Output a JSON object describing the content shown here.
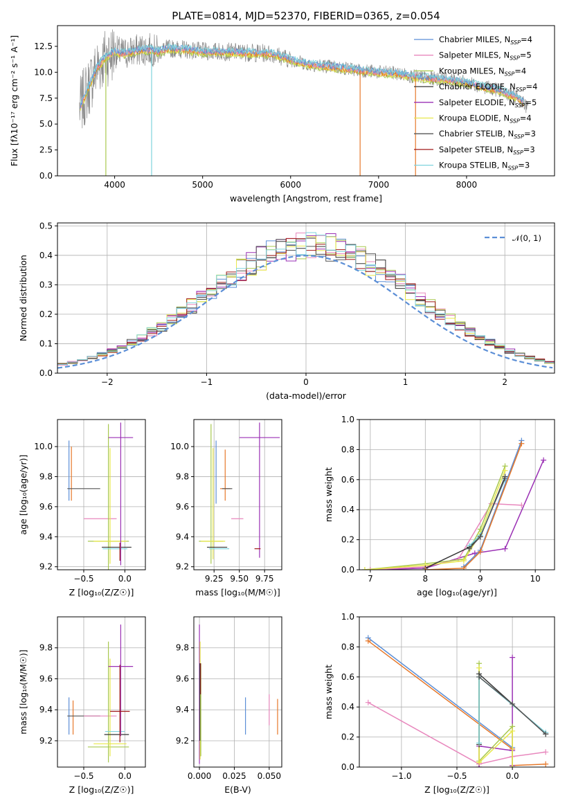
{
  "colors": {
    "Chabrier MILES": "#5b8ed6",
    "Salpeter MILES": "#e887bd",
    "Kroupa MILES": "#a8c84e",
    "Chabrier ELODIE": "#333333",
    "Salpeter ELODIE": "#9a2fb4",
    "Kroupa ELODIE": "#e8e84a",
    "Chabrier STELIB": "#555555",
    "Salpeter STELIB": "#a01818",
    "Kroupa STELIB": "#7ed3dc",
    "orange": "#e6782a",
    "grey": "#888888"
  },
  "chart_data": [
    {
      "id": "spectrum",
      "type": "line",
      "title": "PLATE=0814, MJD=52370, FIBERID=0365, z=0.054",
      "xlabel": "wavelength [Angstrom, rest frame]",
      "ylabel": "Flux [fλ10⁻¹⁷ erg cm⁻² s⁻¹ A⁻¹]",
      "xlim": [
        3350,
        9000
      ],
      "ylim": [
        0,
        14.5
      ],
      "xticks": [
        4000,
        5000,
        6000,
        7000,
        8000
      ],
      "xtick_labels": [
        "4000",
        "5000",
        "6000",
        "7000",
        "8000"
      ],
      "yticks": [
        0,
        2.5,
        5,
        7.5,
        10,
        12.5
      ],
      "ytick_labels": [
        "0.0",
        "2.5",
        "5.0",
        "7.5",
        "10.0",
        "12.5"
      ],
      "grid": false,
      "legend_position": "top-right",
      "legend": [
        {
          "pre": "Chabrier MILES, N",
          "sub": "SSP",
          "post": "=4",
          "color": "#5b8ed6"
        },
        {
          "pre": "Salpeter MILES, N",
          "sub": "SSP",
          "post": "=5",
          "color": "#e887bd"
        },
        {
          "pre": "Kroupa MILES, N",
          "sub": "SSP",
          "post": "=4",
          "color": "#a8c84e"
        },
        {
          "pre": "Chabrier ELODIE, N",
          "sub": "SSP",
          "post": "=4",
          "color": "#333333"
        },
        {
          "pre": "Salpeter ELODIE, N",
          "sub": "SSP",
          "post": "=5",
          "color": "#9a2fb4"
        },
        {
          "pre": "Kroupa ELODIE, N",
          "sub": "SSP",
          "post": "=4",
          "color": "#e8e84a"
        },
        {
          "pre": "Chabrier STELIB, N",
          "sub": "SSP",
          "post": "=3",
          "color": "#555555"
        },
        {
          "pre": "Salpeter STELIB, N",
          "sub": "SSP",
          "post": "=3",
          "color": "#a01818"
        },
        {
          "pre": "Kroupa STELIB, N",
          "sub": "SSP",
          "post": "=3",
          "color": "#7ed3dc"
        }
      ],
      "data_envelope": {
        "x": [
          3600,
          3700,
          3800,
          3900,
          4000,
          4100,
          4200,
          4300,
          4400,
          4500,
          4600,
          4800,
          5000,
          5200,
          5500,
          5800,
          6000,
          6200,
          6500,
          6800,
          7000,
          7200,
          7400,
          7600,
          7800,
          8000,
          8200,
          8400,
          8600,
          8700
        ],
        "y": [
          6.5,
          8.5,
          10.5,
          11.5,
          12.0,
          11.8,
          12.0,
          12.2,
          12.2,
          12.0,
          12.3,
          12.2,
          12.0,
          12.0,
          11.9,
          11.8,
          11.2,
          10.8,
          10.5,
          10.2,
          10.0,
          9.9,
          9.6,
          9.4,
          9.3,
          9.0,
          8.6,
          8.2,
          7.5,
          6.5
        ]
      }
    },
    {
      "id": "residuals",
      "type": "step",
      "xlabel": "(data-model)/error",
      "ylabel": "Normed distribution",
      "xlim": [
        -2.5,
        2.5
      ],
      "ylim": [
        0,
        0.51
      ],
      "xticks": [
        -2,
        -1,
        0,
        1,
        2
      ],
      "xtick_labels": [
        "−2",
        "−1",
        "0",
        "1",
        "2"
      ],
      "yticks": [
        0,
        0.1,
        0.2,
        0.3,
        0.4,
        0.5
      ],
      "ytick_labels": [
        "0.0",
        "0.1",
        "0.2",
        "0.3",
        "0.4",
        "0.5"
      ],
      "grid": true,
      "legend_position": "top-right",
      "legend_label": "𝒩(0, 1)",
      "gaussian": {
        "mean": 0,
        "sigma": 1,
        "color": "#5b8ed6"
      }
    },
    {
      "id": "age-z",
      "type": "errorbar",
      "xlabel": "Z [log₁₀(Z/Z☉)]",
      "ylabel": "age  [log₁₀(age/yr)]",
      "xlim": [
        -0.82,
        0.25
      ],
      "ylim": [
        9.18,
        10.18
      ],
      "xticks": [
        -0.5,
        0.0
      ],
      "xtick_labels": [
        "−0.5",
        "0.0"
      ],
      "yticks": [
        9.2,
        9.4,
        9.6,
        9.8,
        10.0
      ],
      "ytick_labels": [
        "9.2",
        "9.4",
        "9.6",
        "9.8",
        "10.0"
      ],
      "grid": true,
      "points": [
        {
          "x": -0.68,
          "y": 9.72,
          "xerr": 0.0,
          "yerr": [
            0.08,
            0.32
          ],
          "color": "#5b8ed6"
        },
        {
          "x": -0.65,
          "y": 9.72,
          "xerr": 0.0,
          "yerr": [
            0.08,
            0.28
          ],
          "color": "#e6782a"
        },
        {
          "x": -0.5,
          "y": 9.72,
          "xerr": 0.2,
          "yerr": [
            0.0,
            0.0
          ],
          "color": "#555555"
        },
        {
          "x": -0.3,
          "y": 9.52,
          "xerr": 0.2,
          "yerr": [
            0.0,
            0.0
          ],
          "color": "#e887bd"
        },
        {
          "x": -0.2,
          "y": 9.37,
          "xerr": 0.25,
          "yerr": [
            0.2,
            0.78
          ],
          "color": "#a8c84e"
        },
        {
          "x": -0.18,
          "y": 9.37,
          "xerr": 0.2,
          "yerr": [
            0.15,
            0.62
          ],
          "color": "#e8e84a"
        },
        {
          "x": -0.1,
          "y": 9.33,
          "xerr": 0.18,
          "yerr": [
            0.0,
            0.0
          ],
          "color": "#333333"
        },
        {
          "x": -0.12,
          "y": 9.32,
          "xerr": 0.15,
          "yerr": [
            0.0,
            0.0
          ],
          "color": "#7ed3dc"
        },
        {
          "x": -0.05,
          "y": 10.06,
          "xerr": 0.15,
          "yerr": [
            0.85,
            0.1
          ],
          "color": "#9a2fb4"
        },
        {
          "x": -0.06,
          "y": 9.3,
          "xerr": 0.0,
          "yerr": [
            0.06,
            0.06
          ],
          "color": "#a01818"
        }
      ]
    },
    {
      "id": "age-mass",
      "type": "errorbar",
      "xlabel": "mass [log₁₀(M/M☉)]",
      "ylabel": "",
      "xlim": [
        9.05,
        9.92
      ],
      "ylim": [
        9.18,
        10.18
      ],
      "xticks": [
        9.25,
        9.5,
        9.75
      ],
      "xtick_labels": [
        "9.25",
        "9.50",
        "9.75"
      ],
      "yticks": [
        9.2,
        9.4,
        9.6,
        9.8,
        10.0
      ],
      "ytick_labels": [
        "9.2",
        "9.4",
        "9.6",
        "9.8",
        "10.0"
      ],
      "grid": true,
      "points": [
        {
          "x": 9.22,
          "y": 9.37,
          "xerr": 0.12,
          "yerr": [
            0.15,
            0.78
          ],
          "color": "#a8c84e"
        },
        {
          "x": 9.24,
          "y": 9.37,
          "xerr": 0.12,
          "yerr": [
            0.12,
            0.62
          ],
          "color": "#e8e84a"
        },
        {
          "x": 9.28,
          "y": 9.33,
          "xerr": 0.1,
          "yerr": [
            0.0,
            0.0
          ],
          "color": "#333333"
        },
        {
          "x": 9.3,
          "y": 9.32,
          "xerr": 0.1,
          "yerr": [
            0.0,
            0.0
          ],
          "color": "#7ed3dc"
        },
        {
          "x": 9.27,
          "y": 9.72,
          "xerr": 0.0,
          "yerr": [
            0.1,
            0.32
          ],
          "color": "#5b8ed6"
        },
        {
          "x": 9.36,
          "y": 9.72,
          "xerr": 0.05,
          "yerr": [
            0.08,
            0.26
          ],
          "color": "#e6782a"
        },
        {
          "x": 9.38,
          "y": 9.72,
          "xerr": 0.05,
          "yerr": [
            0.0,
            0.0
          ],
          "color": "#555555"
        },
        {
          "x": 9.48,
          "y": 9.52,
          "xerr": 0.06,
          "yerr": [
            0.0,
            0.0
          ],
          "color": "#e887bd"
        },
        {
          "x": 9.7,
          "y": 10.06,
          "xerr": 0.2,
          "yerr": [
            0.8,
            0.1
          ],
          "color": "#9a2fb4"
        },
        {
          "x": 9.68,
          "y": 9.32,
          "xerr": 0.03,
          "yerr": [
            0.0,
            0.0
          ],
          "color": "#a01818"
        }
      ]
    },
    {
      "id": "weight-age",
      "type": "line",
      "xlabel": "age  [log₁₀(age/yr)]",
      "ylabel": "mass weight",
      "xlim": [
        6.8,
        10.35
      ],
      "ylim": [
        0,
        1.0
      ],
      "xticks": [
        7,
        8,
        9,
        10
      ],
      "xtick_labels": [
        "7",
        "8",
        "9",
        "10"
      ],
      "yticks": [
        0,
        0.2,
        0.4,
        0.6,
        0.8,
        1.0
      ],
      "ytick_labels": [
        "0.0",
        "0.2",
        "0.4",
        "0.6",
        "0.8",
        "1.0"
      ],
      "grid": true,
      "series": [
        {
          "color": "#9a2fb4",
          "x": [
            7.0,
            8.0,
            8.9,
            9.45,
            10.15
          ],
          "y": [
            0.0,
            0.01,
            0.11,
            0.14,
            0.73
          ]
        },
        {
          "color": "#e887bd",
          "x": [
            7.0,
            8.0,
            8.6,
            9.2,
            9.75
          ],
          "y": [
            0.0,
            0.02,
            0.07,
            0.44,
            0.43
          ]
        },
        {
          "color": "#a8c84e",
          "x": [
            6.9,
            8.0,
            8.7,
            9.0,
            9.45
          ],
          "y": [
            0.0,
            0.04,
            0.07,
            0.27,
            0.69
          ]
        },
        {
          "color": "#e8e84a",
          "x": [
            6.9,
            8.0,
            8.7,
            9.0,
            9.45
          ],
          "y": [
            0.0,
            0.03,
            0.06,
            0.24,
            0.66
          ]
        },
        {
          "color": "#333333",
          "x": [
            8.0,
            8.8,
            9.0,
            9.45
          ],
          "y": [
            0.01,
            0.15,
            0.22,
            0.62
          ]
        },
        {
          "color": "#7ed3dc",
          "x": [
            8.8,
            9.0,
            9.45
          ],
          "y": [
            0.16,
            0.23,
            0.6
          ]
        },
        {
          "color": "#555555",
          "x": [
            8.8,
            9.0,
            9.45
          ],
          "y": [
            0.14,
            0.22,
            0.61
          ]
        },
        {
          "color": "#5b8ed6",
          "x": [
            8.7,
            9.0,
            9.75
          ],
          "y": [
            0.02,
            0.13,
            0.86
          ]
        },
        {
          "color": "#e6782a",
          "x": [
            8.0,
            8.7,
            9.0,
            9.75
          ],
          "y": [
            0.0,
            0.01,
            0.12,
            0.84
          ]
        }
      ]
    },
    {
      "id": "mass-z",
      "type": "errorbar",
      "xlabel": "Z [log₁₀(Z/Z☉)]",
      "ylabel": "mass [log₁₀(M/M☉)]",
      "xlim": [
        -0.82,
        0.25
      ],
      "ylim": [
        9.03,
        10.0
      ],
      "xticks": [
        -0.5,
        0.0
      ],
      "xtick_labels": [
        "−0.5",
        "0.0"
      ],
      "yticks": [
        9.2,
        9.4,
        9.6,
        9.8
      ],
      "ytick_labels": [
        "9.2",
        "9.4",
        "9.6",
        "9.8"
      ],
      "grid": true,
      "points": [
        {
          "x": -0.68,
          "y": 9.36,
          "xerr": 0.0,
          "yerr": [
            0.12,
            0.12
          ],
          "color": "#5b8ed6"
        },
        {
          "x": -0.63,
          "y": 9.36,
          "xerr": 0.0,
          "yerr": [
            0.12,
            0.1
          ],
          "color": "#e6782a"
        },
        {
          "x": -0.5,
          "y": 9.36,
          "xerr": 0.2,
          "yerr": [
            0.0,
            0.0
          ],
          "color": "#555555"
        },
        {
          "x": -0.3,
          "y": 9.36,
          "xerr": 0.2,
          "yerr": [
            0.0,
            0.0
          ],
          "color": "#e887bd"
        },
        {
          "x": -0.2,
          "y": 9.16,
          "xerr": 0.25,
          "yerr": [
            0.1,
            0.68
          ],
          "color": "#a8c84e"
        },
        {
          "x": -0.18,
          "y": 9.18,
          "xerr": 0.2,
          "yerr": [
            0.08,
            0.55
          ],
          "color": "#e8e84a"
        },
        {
          "x": -0.1,
          "y": 9.24,
          "xerr": 0.15,
          "yerr": [
            0.0,
            0.0
          ],
          "color": "#333333"
        },
        {
          "x": -0.12,
          "y": 9.26,
          "xerr": 0.12,
          "yerr": [
            0.0,
            0.0
          ],
          "color": "#7ed3dc"
        },
        {
          "x": -0.05,
          "y": 9.68,
          "xerr": 0.15,
          "yerr": [
            0.45,
            0.27
          ],
          "color": "#9a2fb4"
        },
        {
          "x": -0.06,
          "y": 9.39,
          "xerr": 0.12,
          "yerr": [
            0.2,
            0.3
          ],
          "color": "#a01818"
        }
      ]
    },
    {
      "id": "mass-ebv",
      "type": "errorbar",
      "xlabel": "E(B-V)",
      "ylabel": "",
      "xlim": [
        -0.004,
        0.059
      ],
      "ylim": [
        9.03,
        10.0
      ],
      "xticks": [
        0.0,
        0.025,
        0.05
      ],
      "xtick_labels": [
        "0.000",
        "0.025",
        "0.050"
      ],
      "yticks": [
        9.2,
        9.4,
        9.6,
        9.8
      ],
      "ytick_labels": [
        "9.2",
        "9.4",
        "9.6",
        "9.8"
      ],
      "grid": true,
      "points": [
        {
          "x": 0.0,
          "y": 9.3,
          "xerr": 0.0,
          "yerr": [
            0.25,
            0.65
          ],
          "color": "#9a2fb4"
        },
        {
          "x": 0.0005,
          "y": 9.3,
          "xerr": 0.0,
          "yerr": [
            0.22,
            0.54
          ],
          "color": "#e8e84a"
        },
        {
          "x": 0.001,
          "y": 9.4,
          "xerr": 0.0,
          "yerr": [
            0.3,
            0.3
          ],
          "color": "#a8c84e"
        },
        {
          "x": 0.0008,
          "y": 9.6,
          "xerr": 0.0,
          "yerr": [
            0.1,
            0.1
          ],
          "color": "#a01818"
        },
        {
          "x": 0.0003,
          "y": 9.5,
          "xerr": 0.0,
          "yerr": [
            0.3,
            0.2
          ],
          "color": "#333333"
        },
        {
          "x": 0.033,
          "y": 9.36,
          "xerr": 0.0,
          "yerr": [
            0.12,
            0.12
          ],
          "color": "#5b8ed6"
        },
        {
          "x": 0.05,
          "y": 9.4,
          "xerr": 0.0,
          "yerr": [
            0.1,
            0.1
          ],
          "color": "#e887bd"
        },
        {
          "x": 0.056,
          "y": 9.35,
          "xerr": 0.0,
          "yerr": [
            0.11,
            0.12
          ],
          "color": "#e6782a"
        }
      ]
    },
    {
      "id": "weight-z",
      "type": "line",
      "xlabel": "Z [log₁₀(Z/Z☉)]",
      "ylabel": "mass weight",
      "xlim": [
        -1.38,
        0.38
      ],
      "ylim": [
        0,
        1.0
      ],
      "xticks": [
        -1.0,
        -0.5,
        0.0
      ],
      "xtick_labels": [
        "−1.0",
        "−0.5",
        "0.0"
      ],
      "yticks": [
        0,
        0.2,
        0.4,
        0.6,
        0.8,
        1.0
      ],
      "ytick_labels": [
        "0.0",
        "0.2",
        "0.4",
        "0.6",
        "0.8",
        "1.0"
      ],
      "grid": true,
      "series": [
        {
          "color": "#5b8ed6",
          "x": [
            -1.3,
            0.0
          ],
          "y": [
            0.86,
            0.13
          ]
        },
        {
          "color": "#e6782a",
          "x": [
            -1.3,
            0.0,
            0.0,
            0.3
          ],
          "y": [
            0.84,
            0.12,
            0.01,
            0.02
          ]
        },
        {
          "color": "#e887bd",
          "x": [
            -1.3,
            -0.3,
            0.0,
            0.3
          ],
          "y": [
            0.43,
            0.02,
            0.07,
            0.1
          ]
        },
        {
          "color": "#9a2fb4",
          "x": [
            -0.3,
            -0.3,
            0.0,
            0.0,
            0.0
          ],
          "y": [
            0.0,
            0.14,
            0.11,
            0.73,
            0.01
          ]
        },
        {
          "color": "#a8c84e",
          "x": [
            -0.3,
            -0.3,
            0.0,
            0.0
          ],
          "y": [
            0.69,
            0.04,
            0.27,
            0.0
          ]
        },
        {
          "color": "#e8e84a",
          "x": [
            -0.3,
            -0.3,
            0.0,
            0.0
          ],
          "y": [
            0.66,
            0.03,
            0.24,
            0.0
          ]
        },
        {
          "color": "#333333",
          "x": [
            -0.3,
            -0.3,
            0.3
          ],
          "y": [
            0.15,
            0.62,
            0.22
          ]
        },
        {
          "color": "#7ed3dc",
          "x": [
            -0.3,
            -0.3,
            0.3
          ],
          "y": [
            0.16,
            0.6,
            0.23
          ]
        },
        {
          "color": "#555555",
          "x": [
            -0.3,
            0.0,
            0.3
          ],
          "y": [
            0.6,
            0.42,
            0.22
          ]
        }
      ]
    }
  ]
}
